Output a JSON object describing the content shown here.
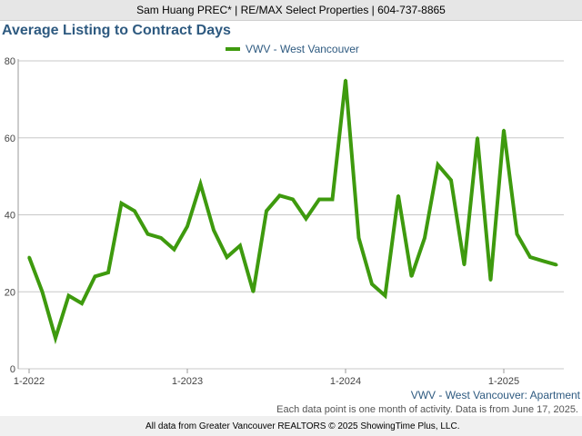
{
  "banner": {
    "text": "Sam Huang PREC* | RE/MAX Select Properties | 604-737-8865"
  },
  "footer": {
    "series_label": "VWV - West Vancouver: Apartment",
    "note": "Each data point is one month of activity. Data is from June 17, 2025.",
    "source": "All data from Greater Vancouver REALTORS © 2025 ShowingTime Plus, LLC."
  },
  "colors": {
    "series": "#3e9a0e",
    "title": "#2e5a80",
    "grid": "#c8c8c8"
  },
  "chart_data": {
    "type": "line",
    "title": "Average Listing to Contract Days",
    "xlabel": "",
    "ylabel": "",
    "ylim": [
      0,
      80
    ],
    "yticks": [
      0,
      20,
      40,
      60,
      80
    ],
    "grid": true,
    "legend_position": "top-center",
    "x_range": [
      "2022-01",
      "2025-06"
    ],
    "xticks": [
      {
        "label": "1-2022",
        "x": "2022-01"
      },
      {
        "label": "1-2023",
        "x": "2023-01"
      },
      {
        "label": "1-2024",
        "x": "2024-01"
      },
      {
        "label": "1-2025",
        "x": "2025-01"
      }
    ],
    "x": [
      "2022-01",
      "2022-02",
      "2022-03",
      "2022-04",
      "2022-05",
      "2022-06",
      "2022-07",
      "2022-08",
      "2022-09",
      "2022-10",
      "2022-11",
      "2022-12",
      "2023-01",
      "2023-02",
      "2023-03",
      "2023-04",
      "2023-05",
      "2023-06",
      "2023-07",
      "2023-08",
      "2023-09",
      "2023-10",
      "2023-11",
      "2023-12",
      "2024-01",
      "2024-02",
      "2024-03",
      "2024-04",
      "2024-05",
      "2024-06",
      "2024-07",
      "2024-08",
      "2024-09",
      "2024-10",
      "2024-11",
      "2024-12",
      "2025-01",
      "2025-02",
      "2025-03",
      "2025-04",
      "2025-05"
    ],
    "series": [
      {
        "name": "VWV - West Vancouver",
        "values": [
          29,
          20,
          8,
          19,
          17,
          24,
          25,
          43,
          41,
          35,
          34,
          31,
          37,
          48,
          36,
          29,
          32,
          20,
          41,
          45,
          44,
          39,
          44,
          44,
          75,
          34,
          22,
          19,
          45,
          24,
          34,
          53,
          49,
          27,
          60,
          23,
          62,
          35,
          29,
          28,
          27
        ]
      }
    ]
  }
}
